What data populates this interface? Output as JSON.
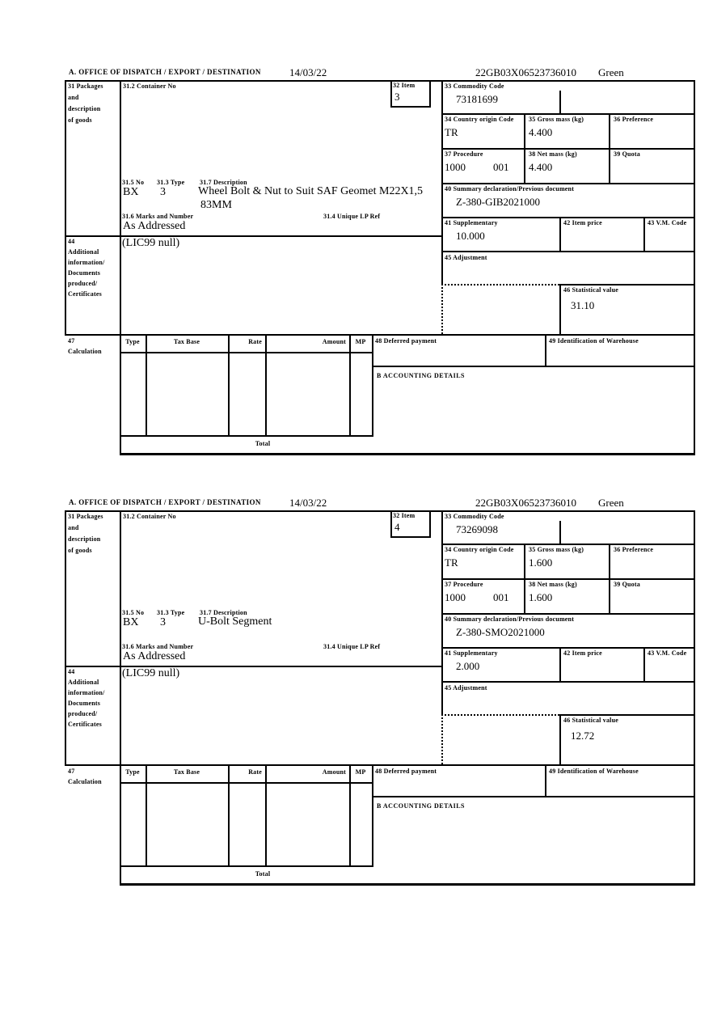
{
  "labels": {
    "header_a": "A.  OFFICE OF DISPATCH / EXPORT / DESTINATION",
    "box31_line1": "31 Packages",
    "box31_line2": "and",
    "box31_line3": "description",
    "box31_line4": "of goods",
    "box31_2": "31.2 Container No",
    "box32": "32 Item",
    "box33": "33 Commodity Code",
    "box31_5": "31.5 No",
    "box31_3": "31.3 Type",
    "box31_7": "31.7 Description",
    "box31_6": "31.6 Marks and Number",
    "box31_4": "31.4 Unique LP Ref",
    "box34": "34 Country origin Code",
    "box35": "35 Gross mass (kg)",
    "box36": "36 Preference",
    "box37": "37 Procedure",
    "box38": "38 Net mass (kg)",
    "box39": "39 Quota",
    "box40": "40 Summary declaration/Previous document",
    "box41": "41 Supplementary",
    "box42": "42 Item price",
    "box43": "43 V.M. Code",
    "box44_line1": "44",
    "box44_line2": "Additional",
    "box44_line3": "information/",
    "box44_line4": "Documents",
    "box44_line5": "produced/",
    "box44_line6": "Certificates",
    "box45": "45 Adjustment",
    "box46": "46 Statistical value",
    "box47_line1": "47",
    "box47_line2": "Calculation",
    "col_type": "Type",
    "col_tax_base": "Tax Base",
    "col_rate": "Rate",
    "col_amount": "Amount",
    "col_mp": "MP",
    "box48": "48 Deferred payment",
    "box49": "49 Identification of Warehouse",
    "section_b": "B ACCOUNTING DETAILS",
    "total": "Total"
  },
  "forms": [
    {
      "date": "14/03/22",
      "mrn": "22GB03X06523736010",
      "routing": "Green",
      "item_no": "3",
      "commodity_code": "73181699",
      "package_no": "BX",
      "package_type": "3",
      "description_line1": "Wheel Bolt & Nut to Suit SAF Geomet M22X1,5",
      "description_line2": "83MM",
      "marks": "As Addressed",
      "additional_info": "(LIC99 null)",
      "country_origin": "TR",
      "gross_mass": "4.400",
      "net_mass": "4.400",
      "procedure_1": "1000",
      "procedure_2": "001",
      "previous_document": "Z-380-GIB2021000",
      "supplementary": "10.000",
      "statistical_value": "31.10"
    },
    {
      "date": "14/03/22",
      "mrn": "22GB03X06523736010",
      "routing": "Green",
      "item_no": "4",
      "commodity_code": "73269098",
      "package_no": "BX",
      "package_type": "3",
      "description_line1": "U-Bolt Segment",
      "description_line2": "",
      "marks": "As Addressed",
      "additional_info": "(LIC99 null)",
      "country_origin": "TR",
      "gross_mass": "1.600",
      "net_mass": "1.600",
      "procedure_1": "1000",
      "procedure_2": "001",
      "previous_document": "Z-380-SMO2021000",
      "supplementary": "2.000",
      "statistical_value": "12.72"
    }
  ]
}
